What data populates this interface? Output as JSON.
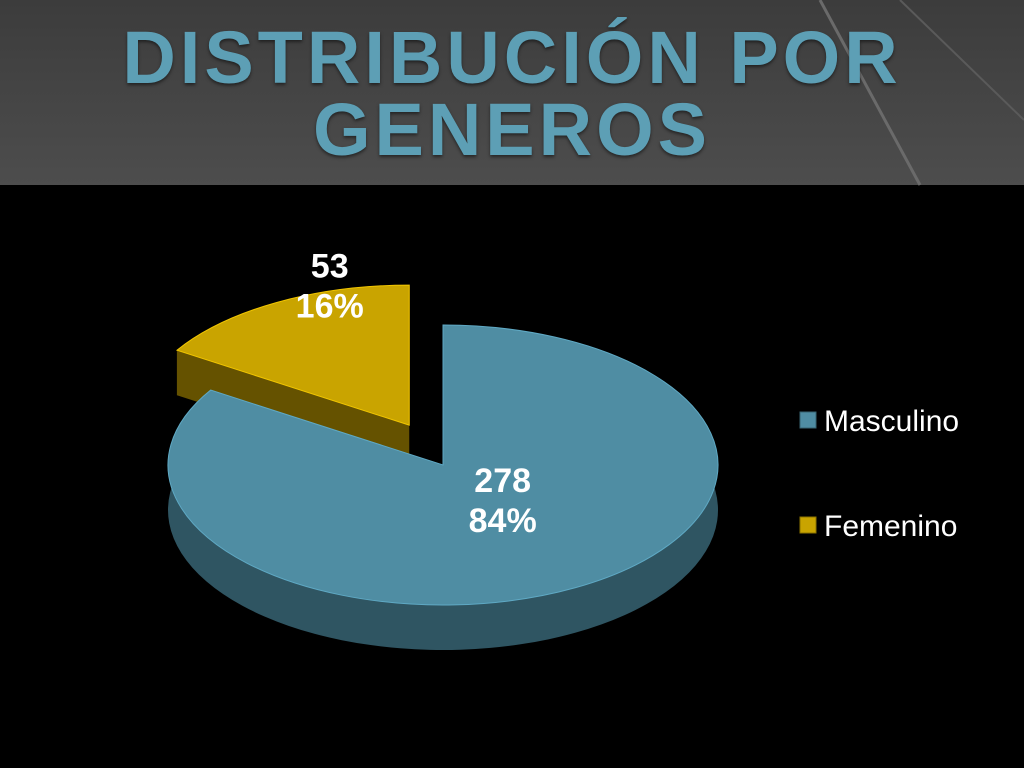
{
  "chart_data": {
    "type": "pie3d",
    "title": "DISTRIBUCIÓN POR GENEROS",
    "categories": [
      "Masculino",
      "Femenino"
    ],
    "values": [
      278,
      53
    ],
    "percent_labels": [
      "84%",
      "16%"
    ],
    "colors": [
      "#4f8da3",
      "#c9a400"
    ],
    "legend": "right"
  }
}
